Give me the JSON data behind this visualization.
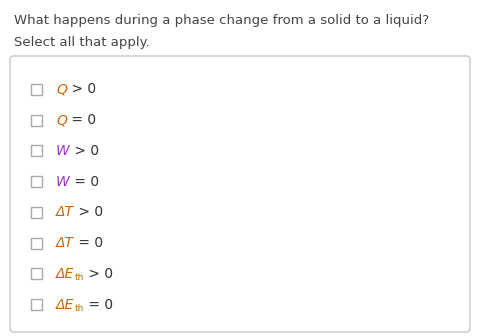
{
  "title": "What happens during a phase change from a solid to a liquid?",
  "subtitle": "Select all that apply.",
  "background_color": "#ffffff",
  "box_border_color": "#c8c8c8",
  "title_fontsize": 9.5,
  "subtitle_fontsize": 9.5,
  "item_fontsize": 10.0,
  "subscript_fontsize": 6.5,
  "checkbox_color": "#ffffff",
  "checkbox_border": "#aaaaaa",
  "text_color": "#444444",
  "var_color": "#cc6600",
  "operator_color": "#333333",
  "items": [
    {
      "label_parts": [
        {
          "text": "Q",
          "style": "italic",
          "color": "#cc6600"
        },
        {
          "text": " > 0",
          "style": "normal",
          "color": "#333333"
        }
      ]
    },
    {
      "label_parts": [
        {
          "text": "Q",
          "style": "italic",
          "color": "#cc6600"
        },
        {
          "text": " = 0",
          "style": "normal",
          "color": "#333333"
        }
      ]
    },
    {
      "label_parts": [
        {
          "text": "W",
          "style": "italic",
          "color": "#9933cc"
        },
        {
          "text": " > 0",
          "style": "normal",
          "color": "#333333"
        }
      ]
    },
    {
      "label_parts": [
        {
          "text": "W",
          "style": "italic",
          "color": "#9933cc"
        },
        {
          "text": " = 0",
          "style": "normal",
          "color": "#333333"
        }
      ]
    },
    {
      "label_parts": [
        {
          "text": "ΔT",
          "style": "italic",
          "color": "#cc6600"
        },
        {
          "text": " > 0",
          "style": "normal",
          "color": "#333333"
        }
      ]
    },
    {
      "label_parts": [
        {
          "text": "ΔT",
          "style": "italic",
          "color": "#cc6600"
        },
        {
          "text": " = 0",
          "style": "normal",
          "color": "#333333"
        }
      ]
    },
    {
      "label_parts": [
        {
          "text": "ΔE",
          "style": "italic",
          "color": "#cc6600"
        },
        {
          "text": "th",
          "style": "subscript",
          "color": "#cc6600"
        },
        {
          "text": " > 0",
          "style": "normal",
          "color": "#333333"
        }
      ]
    },
    {
      "label_parts": [
        {
          "text": "ΔE",
          "style": "italic",
          "color": "#cc6600"
        },
        {
          "text": "th",
          "style": "subscript",
          "color": "#cc6600"
        },
        {
          "text": " = 0",
          "style": "normal",
          "color": "#333333"
        }
      ]
    }
  ]
}
